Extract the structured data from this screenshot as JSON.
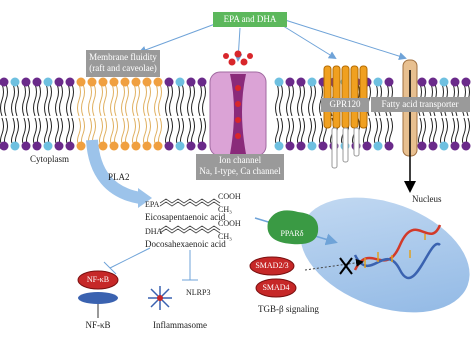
{
  "source": "EPA and DHA",
  "membrane": {
    "line1": "Membrane fluidity",
    "line2": "(raft and caveolae)"
  },
  "gpr": "GPR120",
  "transporter": "Fatty acid transporter",
  "ion_channel": {
    "line1": "Ion channel",
    "line2": "Na, I-type, Ca channel"
  },
  "cytoplasm": "Cytoplasm",
  "enzyme": "PLA2",
  "epa": {
    "abbr": "EPA",
    "head": "COOH",
    "tail": "CH₃",
    "name": "Eicosapentaenoic acid"
  },
  "dha": {
    "abbr": "DHA",
    "head": "COOH",
    "tail": "CH₃",
    "name": "Docosahexaenoic acid"
  },
  "nucleus": "Nucleus",
  "receptor": "PPARδ",
  "smad": {
    "a": "SMAD2/3",
    "b": "SMAD4",
    "pathway": "TGB-β signaling"
  },
  "nfkb": {
    "mark": "NF-κB",
    "label": "NF-κB"
  },
  "inflammasome": {
    "mark": "NLRP3",
    "label": "Inflammasome"
  }
}
